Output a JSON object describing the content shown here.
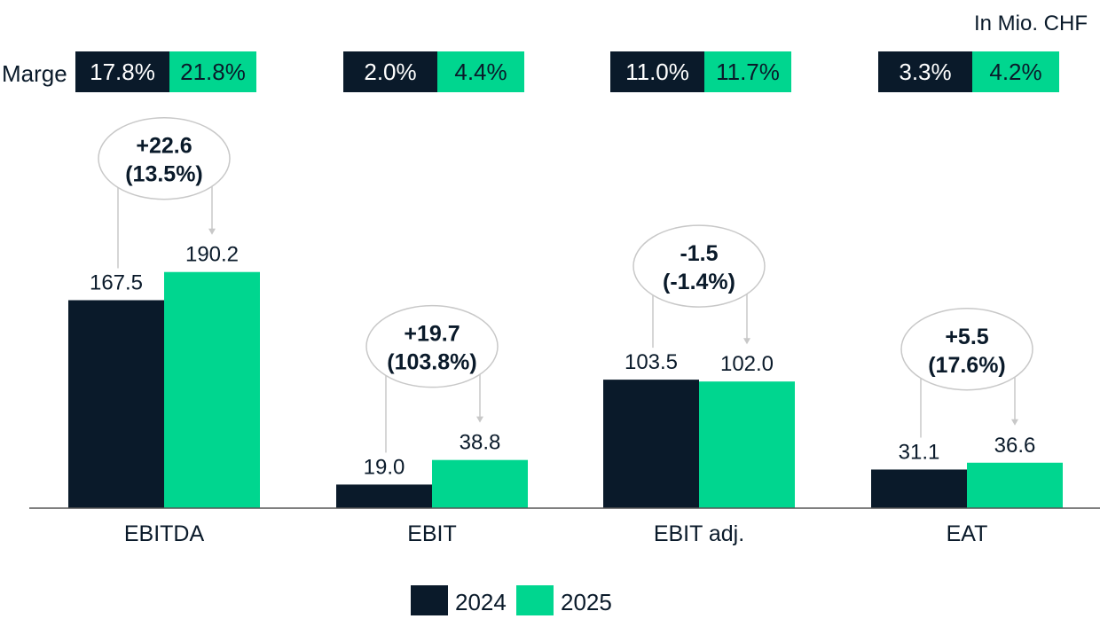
{
  "unit_label": "In Mio. CHF",
  "margin_label": "Marge",
  "colors": {
    "y2024": "#0a1a2a",
    "y2025": "#00d68f",
    "bubble": "#c8c8c8",
    "axis": "#555555"
  },
  "chart_data": {
    "type": "bar",
    "categories": [
      "EBITDA",
      "EBIT",
      "EBIT adj.",
      "EAT"
    ],
    "series": [
      {
        "name": "2024",
        "values": [
          167.5,
          19.0,
          103.5,
          31.1
        ]
      },
      {
        "name": "2025",
        "values": [
          190.2,
          38.8,
          102.0,
          36.6
        ]
      }
    ],
    "value_labels": [
      [
        "167.5",
        "190.2"
      ],
      [
        "19.0",
        "38.8"
      ],
      [
        "103.5",
        "102.0"
      ],
      [
        "31.1",
        "36.6"
      ]
    ],
    "margins": [
      [
        "17.8%",
        "21.8%"
      ],
      [
        "2.0%",
        "4.4%"
      ],
      [
        "11.0%",
        "11.7%"
      ],
      [
        "3.3%",
        "4.2%"
      ]
    ],
    "deltas": [
      {
        "abs": "+22.6",
        "pct": "(13.5%)"
      },
      {
        "abs": "+19.7",
        "pct": "(103.8%)"
      },
      {
        "abs": "-1.5",
        "pct": "(-1.4%)"
      },
      {
        "abs": "+5.5",
        "pct": "(17.6%)"
      }
    ],
    "ylim": [
      0,
      220
    ],
    "legend": "bottom-center",
    "grid": false
  }
}
